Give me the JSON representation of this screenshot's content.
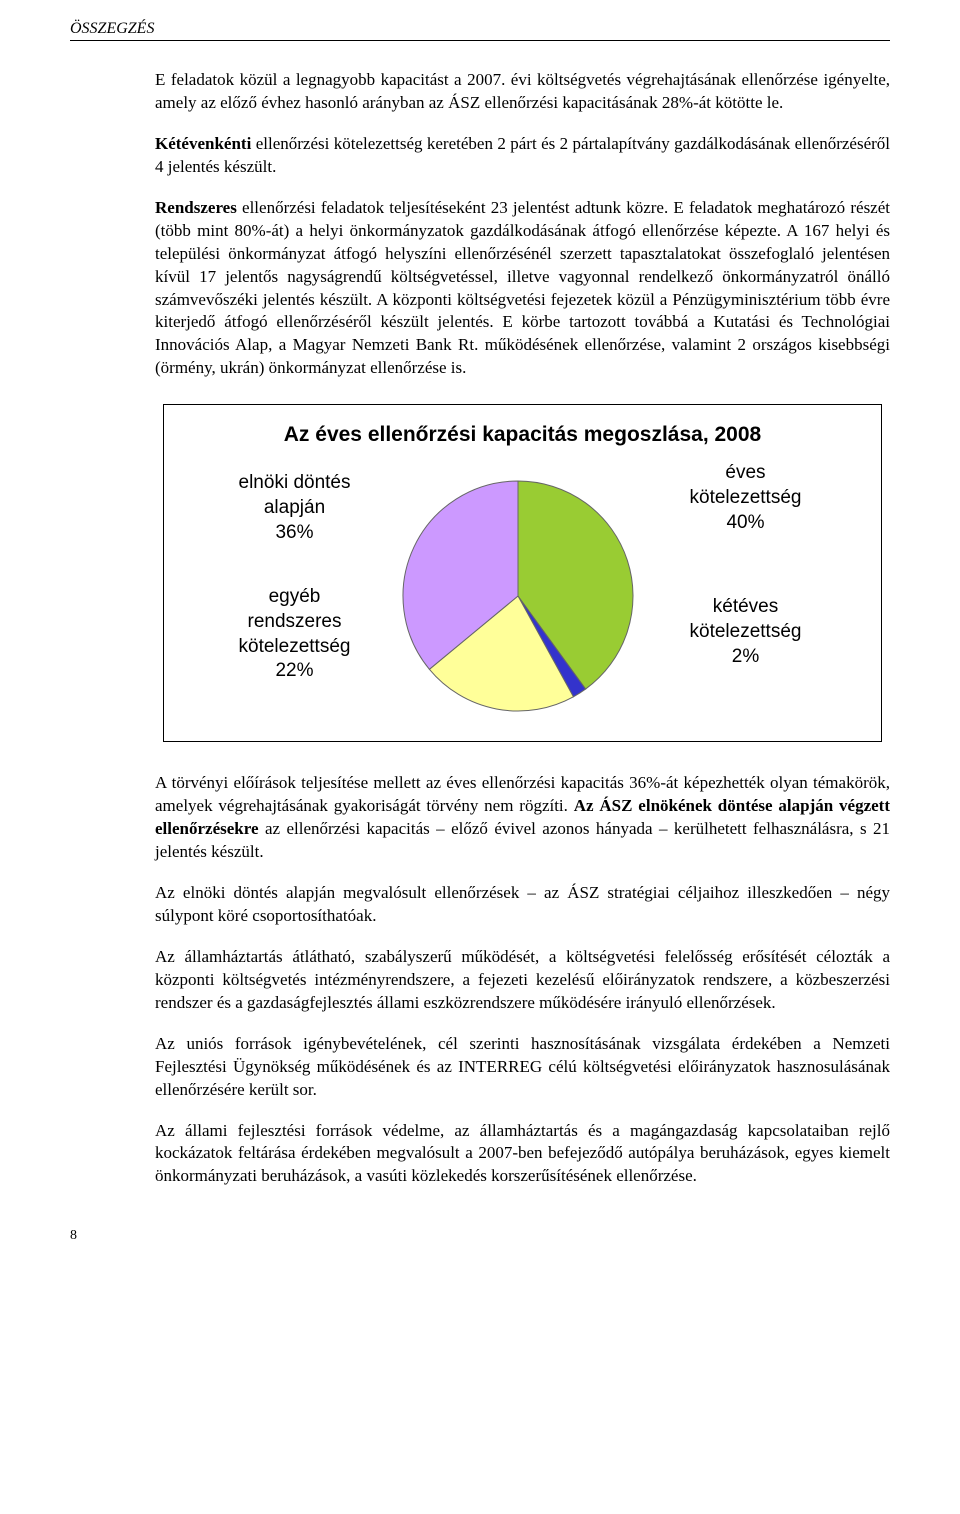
{
  "header": "ÖSSZEGZÉS",
  "p1_a": "E feladatok közül a legnagyobb kapacitást a 2007. évi költségvetés végrehajtásá­nak ellenőrzése igényelte, amely az előző évhez hasonló arányban az ÁSZ ellen­őrzési kapacitásának 28%-át kötötte le.",
  "p2_bold": "Kétévenkénti",
  "p2_rest": " ellenőrzési kötelezettség keretében 2 párt és 2 pártalapítvány gazdálkodásának ellenőrzéséről 4 jelentés készült.",
  "p3_bold": "Rendszeres",
  "p3_rest": " ellenőrzési feladatok teljesítéseként 23 jelentést adtunk közre. E fel­adatok meghatározó részét (több mint 80%-át) a helyi önkormányzatok gazdál­kodásának átfogó ellenőrzése képezte. A 167 helyi és települési önkormányzat át­fogó helyszíni ellenőrzésénél szerzett tapasztalatokat összefoglaló jelentésen kívül 17 jelentős nagyságrendű költségvetéssel, illetve vagyonnal rendelkező önkor­mányzatról önálló számvevőszéki jelentés készült. A központi költségvetési fejeze­tek közül a Pénzügyminisztérium több évre kiterjedő átfogó ellenőrzéséről készült jelentés. E körbe tartozott továbbá a Kutatási és Technológiai Innovációs Alap, a Magyar Nemzeti Bank Rt. működésének ellenőrzése, valamint 2 országos kisebb­ségi (örmény, ukrán) önkormányzat ellenőrzése is.",
  "p4_a": "A törvényi előírások teljesítése mellett az éves ellenőrzési kapacitás 36%-át ké­pezhették olyan témakörök, amelyek végrehajtásának gyakoriságát törvény nem rögzíti. ",
  "p4_bold": "Az ÁSZ elnökének döntése alapján végzett ellenőrzésekre",
  "p4_b": " az ellenőrzési kapacitás – előző évivel azonos hányada – kerülhetett felhaszná­lásra, s 21 jelentés készült.",
  "p5": "Az elnöki döntés alapján megvalósult ellenőrzések – az ÁSZ stratégiai céljaihoz illeszkedően – négy súlypont köré csoportosíthatóak.",
  "p6": "Az államháztartás átlátható, szabályszerű működését, a költségvetési felelősség erősítését célozták a központi költségvetés intézményrendszere, a fejezeti kezelésű előirányzatok rendszere, a közbeszerzési rendszer és a gazdaságfejlesztés állami eszközrendszere működésére irányuló ellenőrzések.",
  "p7": "Az uniós források igénybevételének, cél szerinti hasznosításának vizsgálata érde­kében a Nemzeti Fejlesztési Ügynökség működésének és az INTERREG célú költ­ségvetési előirányzatok hasznosulásának ellenőrzésére került sor.",
  "p8": "Az állami fejlesztési források védelme, az államháztartás és a magángazdaság kapcsolataiban rejlő kockázatok feltárása érdekében megvalósult a 2007-ben be­fejeződő autópálya beruházások, egyes kiemelt önkormányzati beruházások, a vasúti közlekedés korszerűsítésének ellenőrzése.",
  "chart": {
    "title": "Az éves ellenőrzési kapacitás megoszlása, 2008",
    "slices": [
      {
        "label_lines": [
          "éves",
          "kötelezettség",
          "40%"
        ],
        "value": 40,
        "color": "#99cc33"
      },
      {
        "label_lines": [
          "kétéves",
          "kötelezettség",
          "2%"
        ],
        "value": 2,
        "color": "#3333cc"
      },
      {
        "label_lines": [
          "egyéb",
          "rendszeres",
          "kötelezettség",
          "22%"
        ],
        "value": 22,
        "color": "#ffff99"
      },
      {
        "label_lines": [
          "elnöki döntés",
          "alapján",
          "36%"
        ],
        "value": 36,
        "color": "#cc99ff"
      }
    ],
    "stroke": "#666666",
    "stroke_width": 1
  },
  "page_number": "8"
}
